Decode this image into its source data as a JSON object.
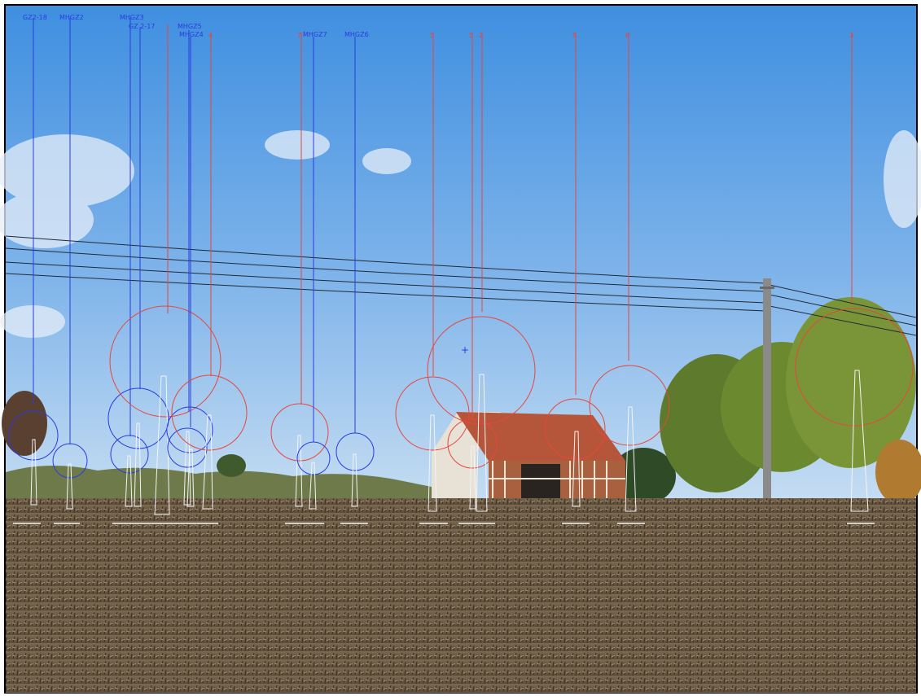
{
  "scene": {
    "description_tags": [
      "sky",
      "power-lines",
      "barn",
      "trees",
      "stubble-field",
      "utility-pole"
    ],
    "colors": {
      "sky_top": "#3f8fe0",
      "sky_bottom": "#b8d6f2",
      "field": "#6b5a45",
      "roof": "#b5563a",
      "marker_blue": "#2a3be0",
      "marker_red": "#e8463c"
    }
  },
  "markers": [
    {
      "id": "b1",
      "label": "GZ2-18",
      "group": "blue"
    },
    {
      "id": "b2",
      "label": "MHGZ2",
      "group": "blue"
    },
    {
      "id": "b3",
      "label": "MHGZ3",
      "group": "blue"
    },
    {
      "id": "b4",
      "label": "GZ 2-17",
      "group": "blue"
    },
    {
      "id": "r1",
      "label": "",
      "group": "red"
    },
    {
      "id": "b5",
      "label": "MHGZ5",
      "group": "blue"
    },
    {
      "id": "b6",
      "label": "MHGZ4",
      "group": "blue"
    },
    {
      "id": "r2",
      "label": "4",
      "group": "red"
    },
    {
      "id": "r3",
      "label": "7",
      "group": "red"
    },
    {
      "id": "b7",
      "label": "MHGZ7",
      "group": "blue"
    },
    {
      "id": "b8",
      "label": "MHGZ6",
      "group": "blue"
    },
    {
      "id": "r4",
      "label": "5",
      "group": "red"
    },
    {
      "id": "r5",
      "label": "5",
      "group": "red"
    },
    {
      "id": "r6",
      "label": "2",
      "group": "red"
    },
    {
      "id": "r7",
      "label": "8",
      "group": "red"
    },
    {
      "id": "r8",
      "label": "6",
      "group": "red"
    },
    {
      "id": "r9",
      "label": "3",
      "group": "red"
    }
  ]
}
